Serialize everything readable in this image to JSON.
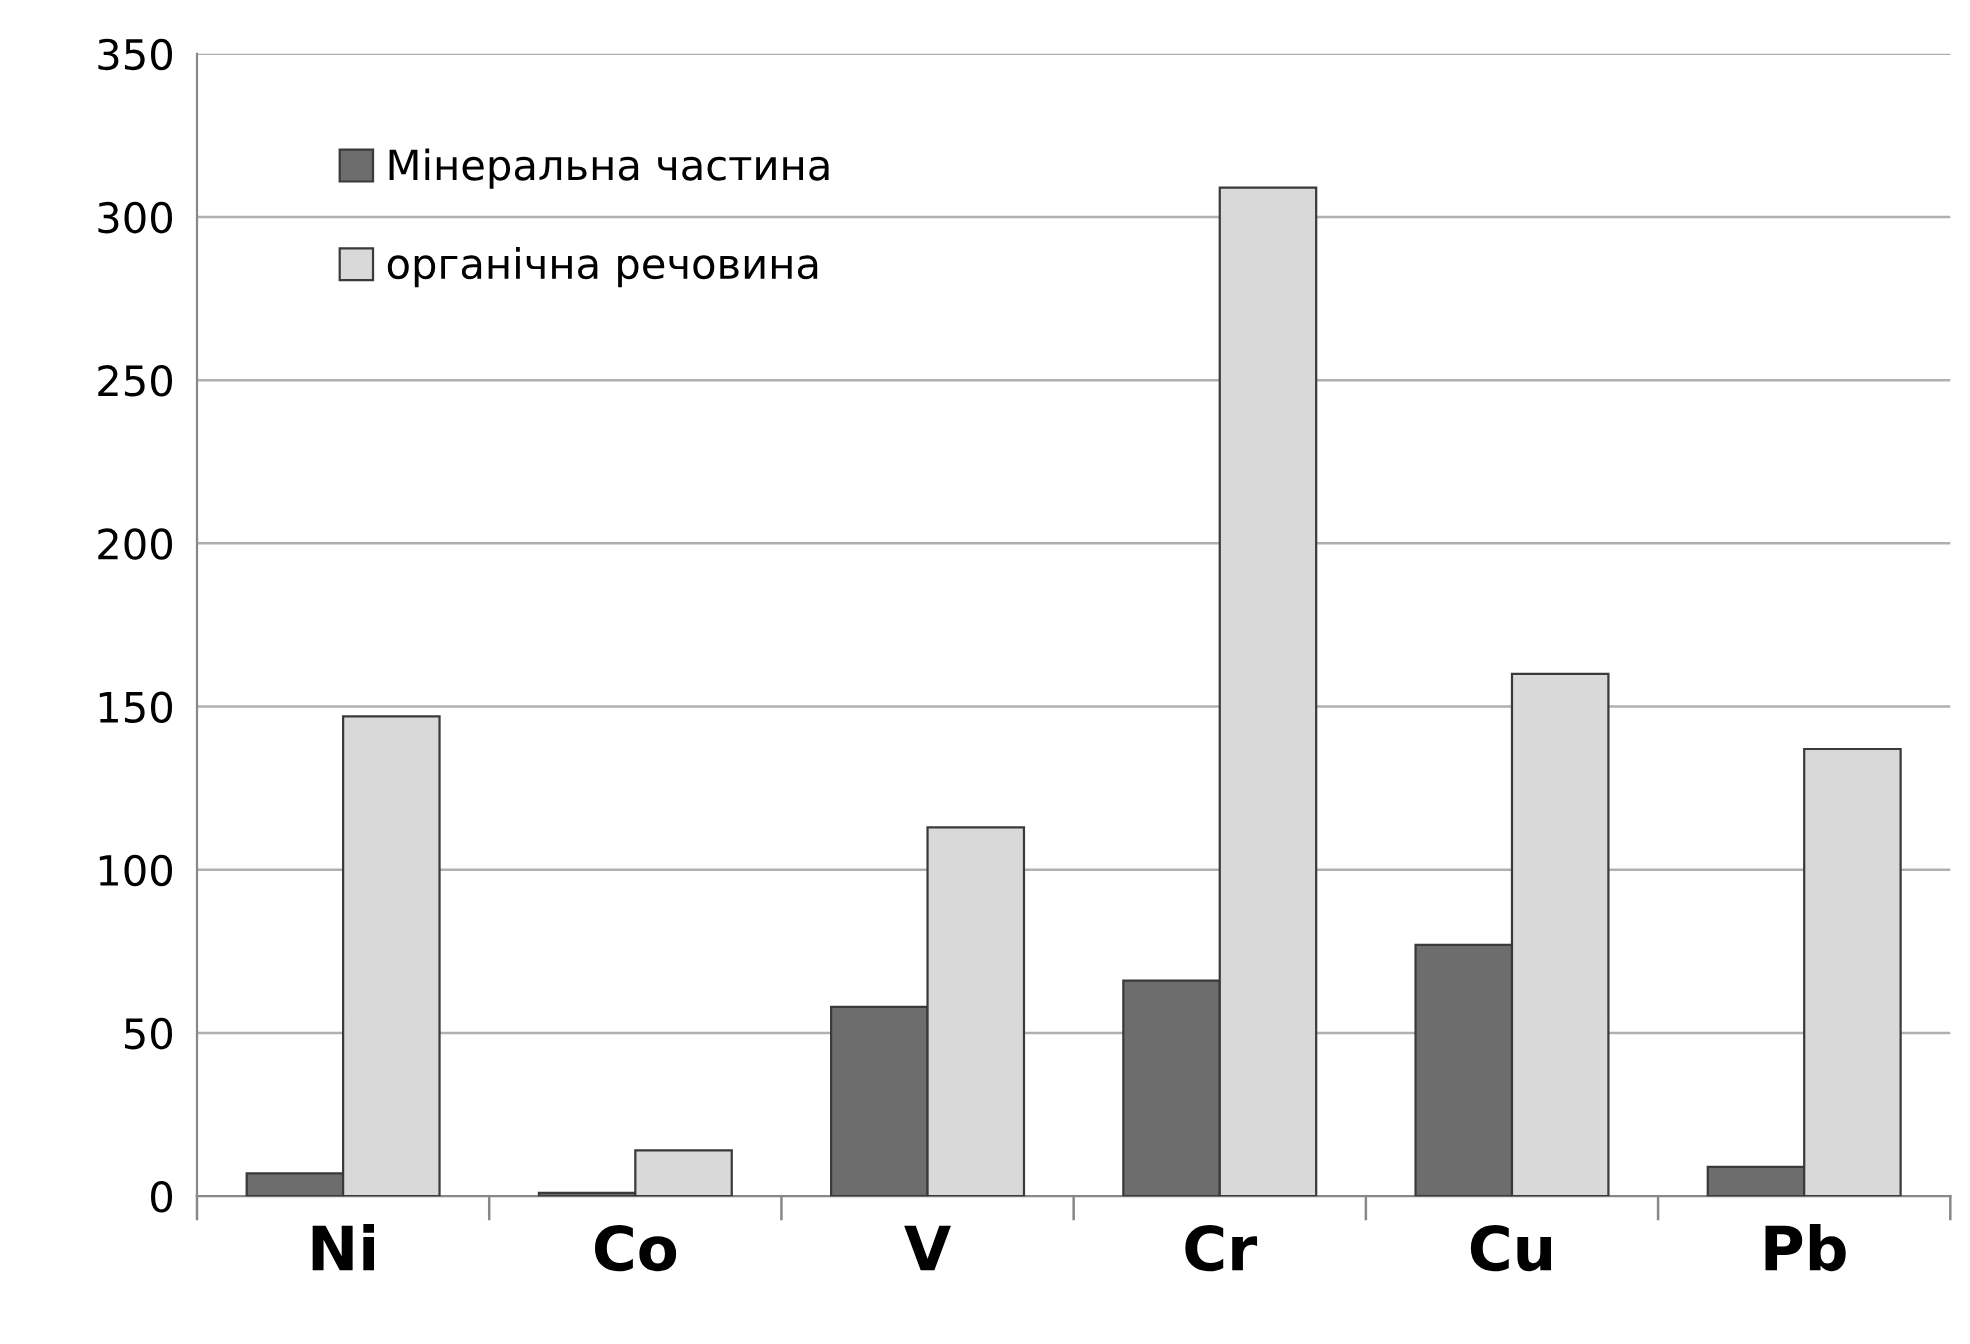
{
  "chart_data": {
    "type": "bar",
    "categories": [
      "Ni",
      "Co",
      "V",
      "Cr",
      "Cu",
      "Pb"
    ],
    "series": [
      {
        "name": "Мінеральна частина",
        "color": "#6d6d6d",
        "values": [
          7,
          1,
          58,
          66,
          77,
          9
        ]
      },
      {
        "name": "органічна речовина",
        "color": "#d9d9d9",
        "values": [
          147,
          14,
          113,
          309,
          160,
          137
        ]
      }
    ],
    "ylim": [
      0,
      350
    ],
    "yticks": [
      0,
      50,
      100,
      150,
      200,
      250,
      300,
      350
    ],
    "grid": "y",
    "legend": "top left"
  }
}
